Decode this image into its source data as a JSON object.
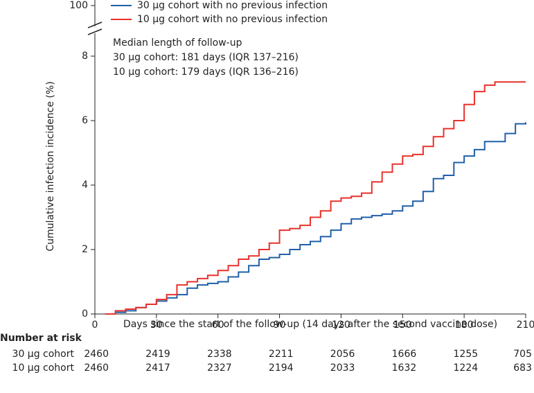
{
  "chart_data": {
    "type": "line",
    "step": "post",
    "ylabel": "Cumulative infection incidence (%)",
    "xlabel": "Days since the start of the follow-up (14 days after the second vaccine dose)",
    "annotations": [
      "Median length of follow-up",
      "30 µg cohort: 181 days (IQR 137–216)",
      "10 µg cohort: 179 days (IQR 136–216)"
    ],
    "xlim": [
      0,
      210
    ],
    "xticks": [
      0,
      30,
      60,
      90,
      120,
      150,
      180,
      210
    ],
    "ylim": [
      0,
      8
    ],
    "yticks": [
      0,
      2,
      4,
      6,
      8
    ],
    "ybreak_tick": 100,
    "x": [
      5,
      10,
      15,
      20,
      25,
      30,
      35,
      40,
      45,
      50,
      55,
      60,
      65,
      70,
      75,
      80,
      85,
      90,
      95,
      100,
      105,
      110,
      115,
      120,
      125,
      130,
      135,
      140,
      145,
      150,
      155,
      160,
      165,
      170,
      175,
      180,
      185,
      190,
      195,
      200,
      205,
      210
    ],
    "series": [
      {
        "name": "30 µg cohort with no previous infection",
        "color": "#1f5fa8",
        "values": [
          0,
          0.05,
          0.1,
          0.2,
          0.3,
          0.4,
          0.5,
          0.6,
          0.8,
          0.9,
          0.95,
          1.0,
          1.15,
          1.3,
          1.5,
          1.7,
          1.75,
          1.85,
          2.0,
          2.15,
          2.25,
          2.4,
          2.6,
          2.8,
          2.95,
          3.0,
          3.05,
          3.1,
          3.2,
          3.35,
          3.5,
          3.8,
          4.2,
          4.3,
          4.7,
          4.9,
          5.1,
          5.35,
          5.35,
          5.6,
          5.9,
          5.95
        ]
      },
      {
        "name": "10 µg cohort with no previous infection",
        "color": "#e8312a",
        "values": [
          0,
          0.1,
          0.15,
          0.2,
          0.3,
          0.45,
          0.6,
          0.9,
          1.0,
          1.1,
          1.2,
          1.35,
          1.5,
          1.7,
          1.8,
          2.0,
          2.2,
          2.6,
          2.65,
          2.75,
          3.0,
          3.2,
          3.5,
          3.6,
          3.65,
          3.75,
          4.1,
          4.4,
          4.65,
          4.9,
          4.95,
          5.2,
          5.5,
          5.75,
          6.0,
          6.5,
          6.9,
          7.1,
          7.2,
          7.2,
          7.2,
          7.2
        ]
      }
    ],
    "risk_table": {
      "title": "Number at risk",
      "rows": [
        {
          "label": "30 µg cohort",
          "values": [
            2460,
            2419,
            2338,
            2211,
            2056,
            1666,
            1255,
            705
          ]
        },
        {
          "label": "10 µg cohort",
          "values": [
            2460,
            2417,
            2327,
            2194,
            2033,
            1632,
            1224,
            683
          ]
        }
      ]
    }
  }
}
